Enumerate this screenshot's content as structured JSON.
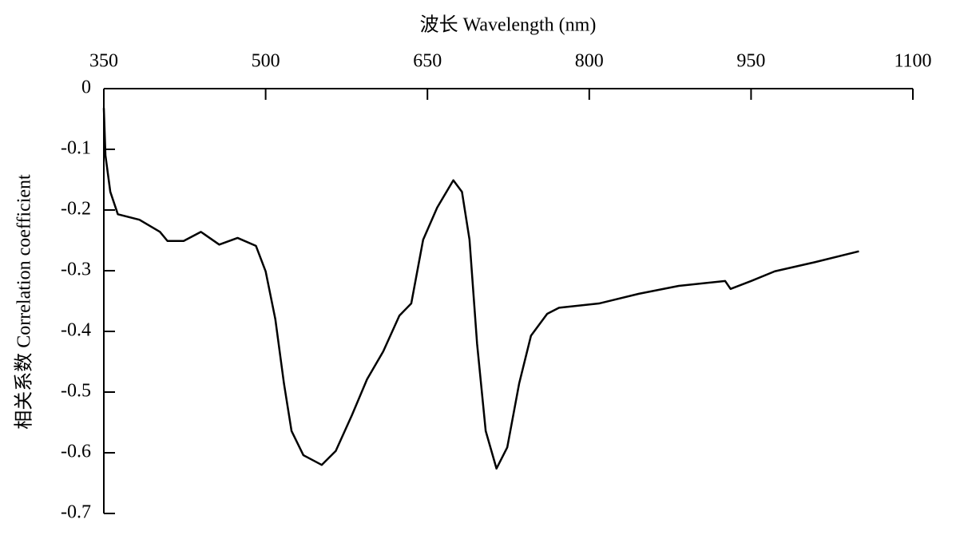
{
  "chart_data": {
    "type": "line",
    "x_label": "波长 Wavelength (nm)",
    "y_label": "相关系数 Correlation coefficient",
    "x": [
      350,
      351.5,
      356,
      363,
      383,
      402,
      409,
      424,
      440,
      457,
      474,
      491,
      500,
      509,
      517,
      524,
      535,
      552,
      565,
      580,
      594,
      609,
      624,
      635,
      646,
      659,
      674,
      682,
      689,
      696,
      704,
      714,
      724,
      735,
      746,
      761,
      772,
      809,
      846,
      883,
      926,
      931,
      950,
      972,
      1009,
      1050
    ],
    "series": [
      {
        "color": "#000000",
        "values": [
          -0.032,
          -0.11,
          -0.17,
          -0.207,
          -0.216,
          -0.236,
          -0.251,
          -0.251,
          -0.236,
          -0.257,
          -0.246,
          -0.259,
          -0.301,
          -0.38,
          -0.486,
          -0.564,
          -0.604,
          -0.62,
          -0.597,
          -0.538,
          -0.479,
          -0.433,
          -0.374,
          -0.354,
          -0.249,
          -0.196,
          -0.151,
          -0.17,
          -0.249,
          -0.42,
          -0.564,
          -0.626,
          -0.591,
          -0.486,
          -0.407,
          -0.371,
          -0.361,
          -0.354,
          -0.338,
          -0.325,
          -0.317,
          -0.33,
          -0.317,
          -0.301,
          -0.286,
          -0.268
        ]
      }
    ],
    "xlim": [
      350,
      1100
    ],
    "xticks": [
      350,
      500,
      650,
      800,
      950,
      1100
    ],
    "ylim": [
      -0.7,
      0
    ],
    "yticks": [
      0,
      -0.1,
      -0.2,
      -0.3,
      -0.4,
      -0.5,
      -0.6,
      -0.7
    ]
  }
}
